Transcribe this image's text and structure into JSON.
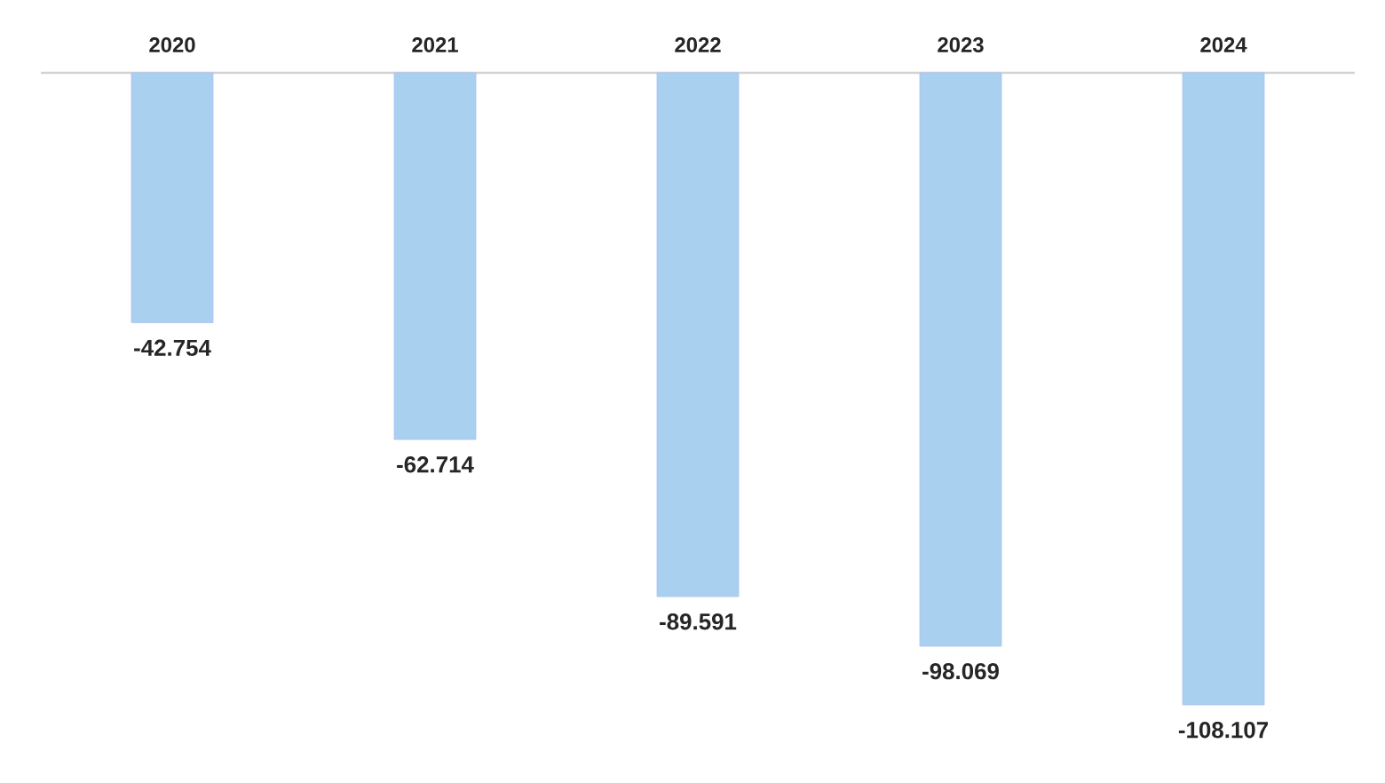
{
  "chart_data": {
    "type": "bar",
    "categories": [
      "2020",
      "2021",
      "2022",
      "2023",
      "2024"
    ],
    "values": [
      -42.754,
      -62.714,
      -89.591,
      -98.069,
      -108.107
    ],
    "value_labels": [
      "-42.754",
      "-62.714",
      "-89.591",
      "-98.069",
      "-108.107"
    ],
    "color": "#a9d0ef"
  }
}
